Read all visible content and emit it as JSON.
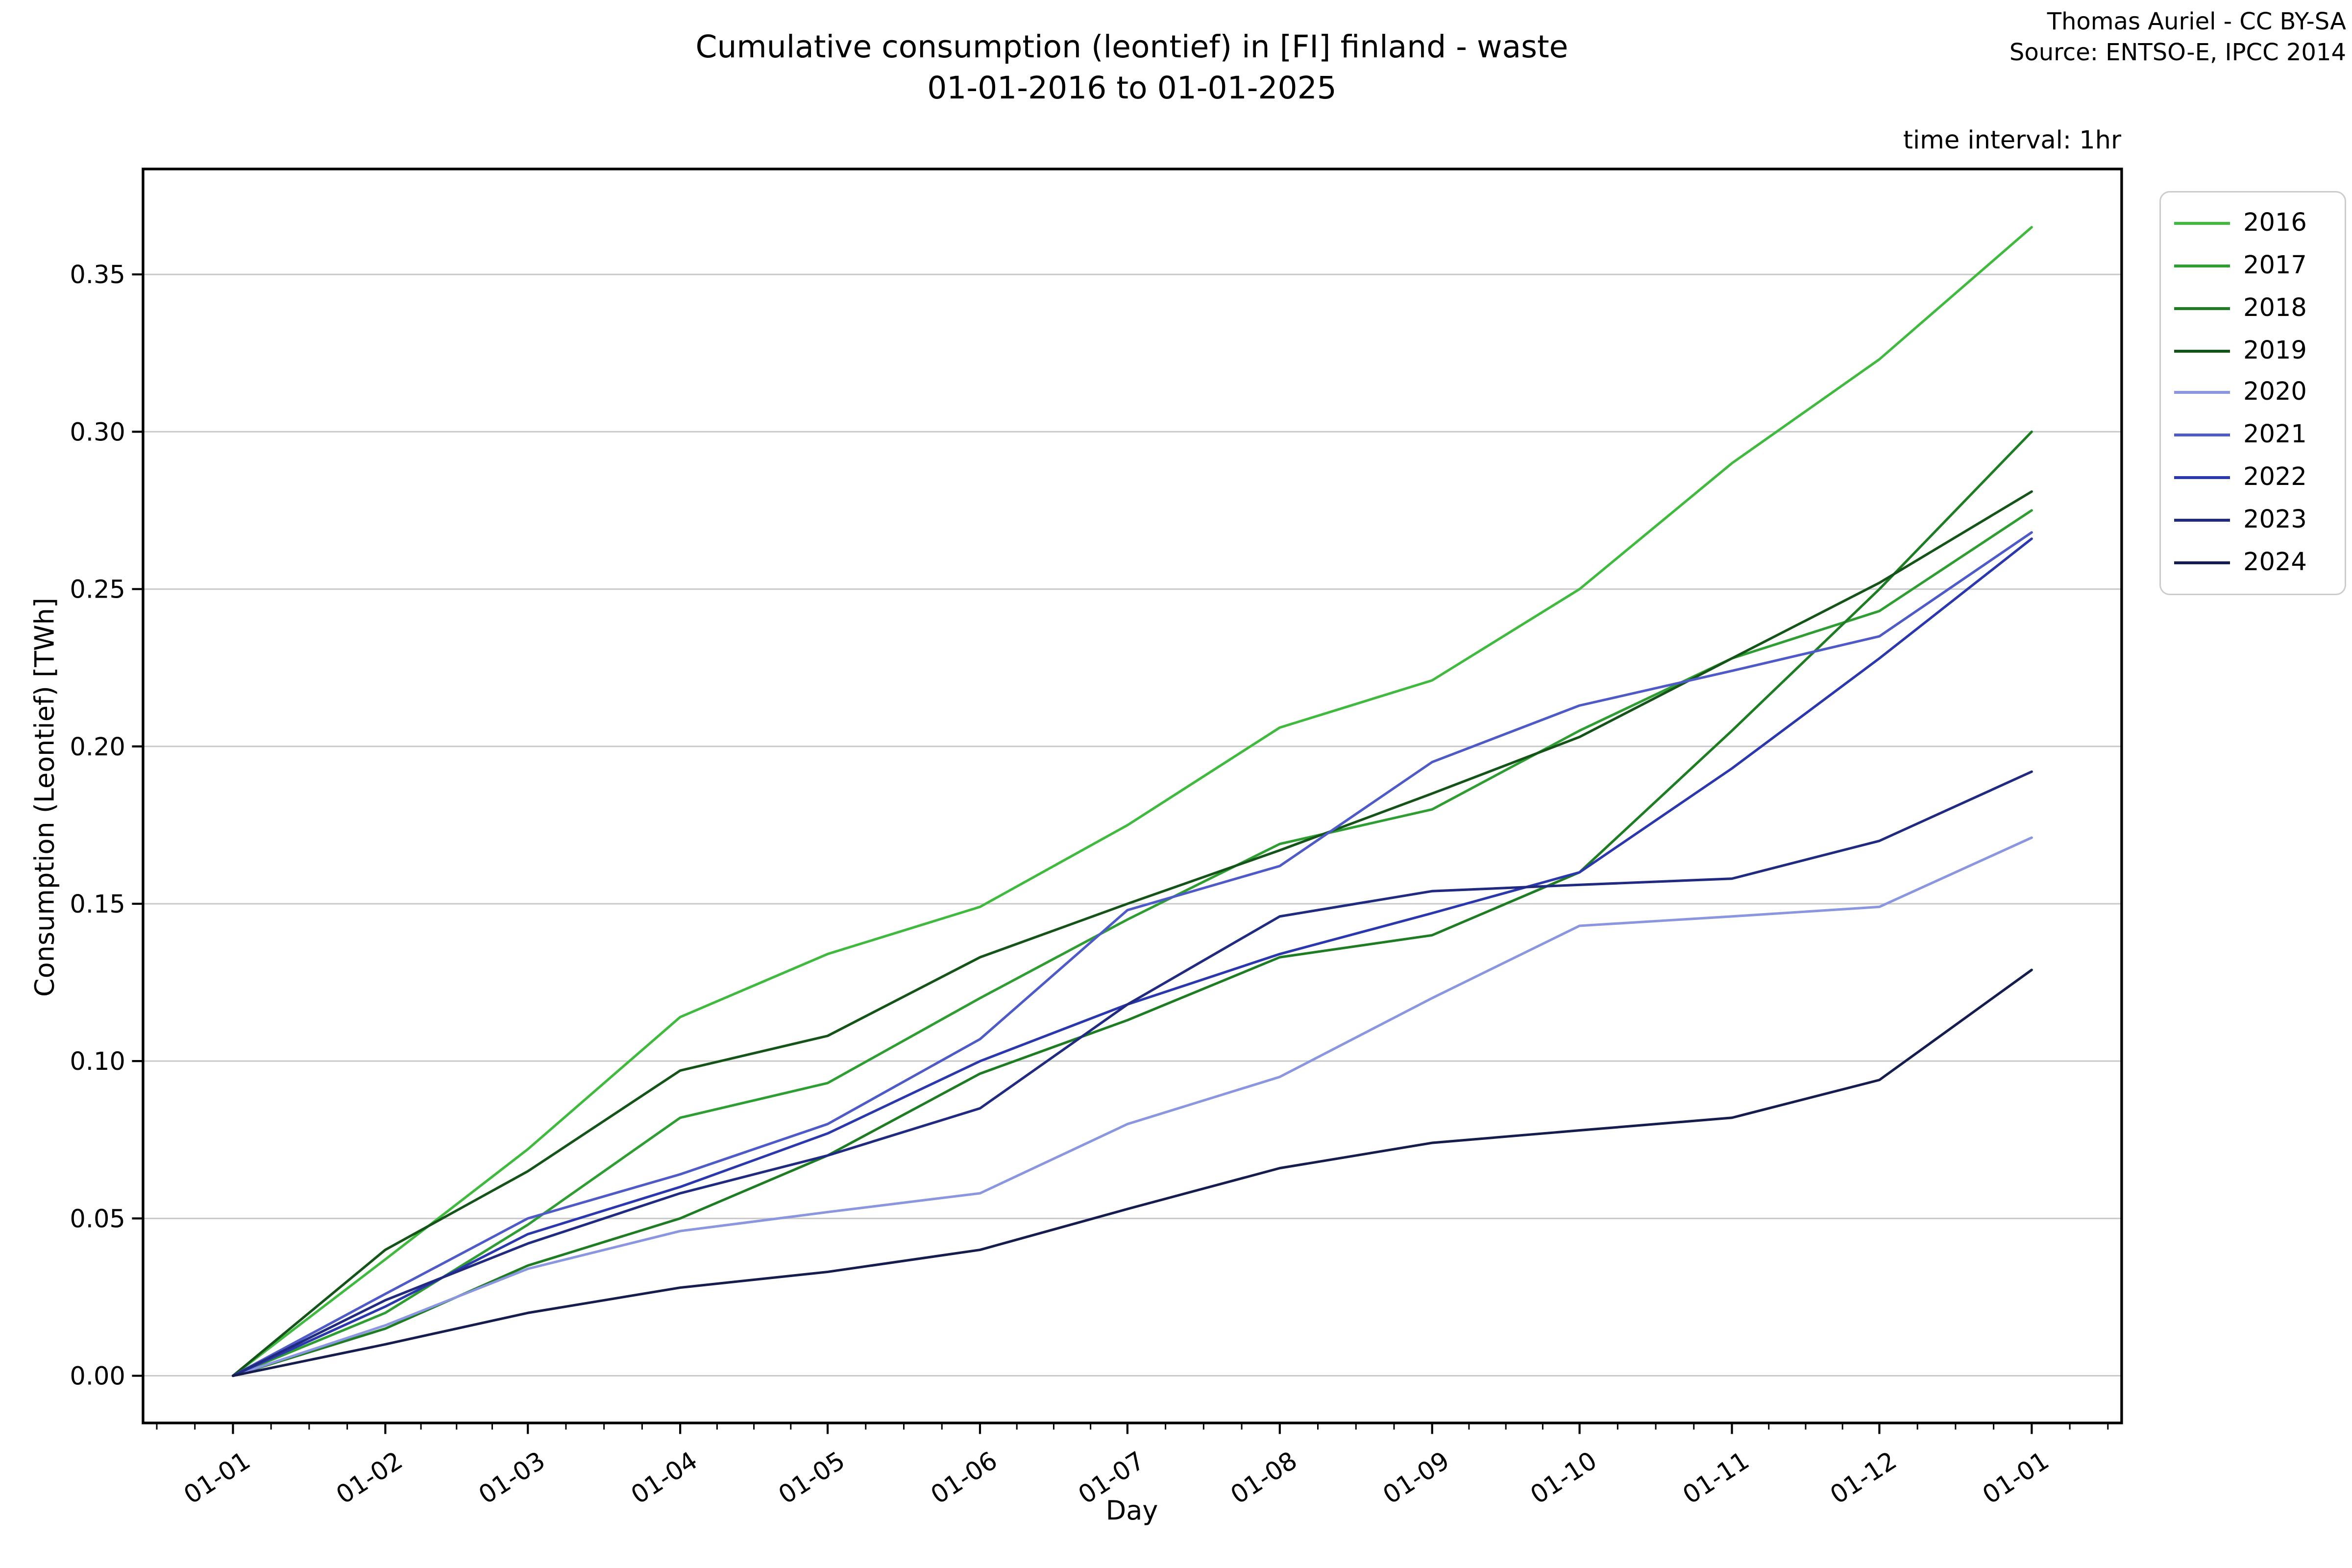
{
  "header": {
    "title_line1": "Cumulative consumption (leontief) in [FI] finland - waste",
    "title_line2": "01-01-2016 to 01-01-2025",
    "credit_line1": "Thomas Auriel - CC BY-SA",
    "credit_line2": "Source: ENTSO-E, IPCC 2014",
    "time_interval_note": "time interval: 1hr"
  },
  "chart_data": {
    "type": "line",
    "title": "Cumulative consumption (leontief) in [FI] finland - waste 01-01-2016 to 01-01-2025",
    "xlabel": "Day",
    "ylabel": "Consumption (Leontief) [TWh]",
    "grid": "horizontal only",
    "grid_color": "#c9c9c9",
    "legend_position": "outside upper right",
    "x_tick_labels": [
      "01-01",
      "01-02",
      "01-03",
      "01-04",
      "01-05",
      "01-06",
      "01-07",
      "01-08",
      "01-09",
      "01-10",
      "01-11",
      "01-12",
      "01-01"
    ],
    "x_days": [
      0,
      31,
      60,
      91,
      121,
      152,
      182,
      213,
      244,
      274,
      305,
      335,
      366
    ],
    "y_ticks": [
      "0.00",
      "0.05",
      "0.10",
      "0.15",
      "0.20",
      "0.25",
      "0.30",
      "0.35"
    ],
    "ylim": [
      -0.015,
      0.3835
    ],
    "xlim_days": [
      -18.3,
      384.3
    ],
    "series": [
      {
        "name": "2016",
        "color": "#3fba3f",
        "values": [
          0.0,
          0.037,
          0.072,
          0.114,
          0.134,
          0.149,
          0.175,
          0.206,
          0.221,
          0.25,
          0.29,
          0.323,
          0.365
        ]
      },
      {
        "name": "2017",
        "color": "#2f9e32",
        "values": [
          0.0,
          0.02,
          0.048,
          0.082,
          0.093,
          0.12,
          0.145,
          0.169,
          0.18,
          0.205,
          0.228,
          0.243,
          0.275
        ]
      },
      {
        "name": "2018",
        "color": "#1e7d22",
        "values": [
          0.0,
          0.015,
          0.035,
          0.05,
          0.07,
          0.096,
          0.113,
          0.133,
          0.14,
          0.16,
          0.205,
          0.25,
          0.3
        ]
      },
      {
        "name": "2019",
        "color": "#145418",
        "values": [
          0.0,
          0.04,
          0.065,
          0.097,
          0.108,
          0.133,
          0.15,
          0.167,
          0.185,
          0.203,
          0.228,
          0.252,
          0.281
        ]
      },
      {
        "name": "2020",
        "color": "#8b96e0",
        "values": [
          0.0,
          0.016,
          0.034,
          0.046,
          0.052,
          0.058,
          0.08,
          0.095,
          0.12,
          0.143,
          0.146,
          0.149,
          0.171
        ]
      },
      {
        "name": "2021",
        "color": "#4d5ac8",
        "values": [
          0.0,
          0.026,
          0.05,
          0.064,
          0.08,
          0.107,
          0.148,
          0.162,
          0.195,
          0.213,
          0.224,
          0.235,
          0.268
        ]
      },
      {
        "name": "2022",
        "color": "#2b38ad",
        "values": [
          0.0,
          0.022,
          0.045,
          0.06,
          0.077,
          0.1,
          0.118,
          0.134,
          0.147,
          0.16,
          0.193,
          0.228,
          0.266
        ]
      },
      {
        "name": "2023",
        "color": "#1f2a80",
        "values": [
          0.0,
          0.024,
          0.042,
          0.058,
          0.07,
          0.085,
          0.118,
          0.146,
          0.154,
          0.156,
          0.158,
          0.17,
          0.192
        ]
      },
      {
        "name": "2024",
        "color": "#151c4e",
        "values": [
          0.0,
          0.01,
          0.02,
          0.028,
          0.033,
          0.04,
          0.053,
          0.066,
          0.074,
          0.078,
          0.082,
          0.094,
          0.129
        ]
      }
    ]
  }
}
